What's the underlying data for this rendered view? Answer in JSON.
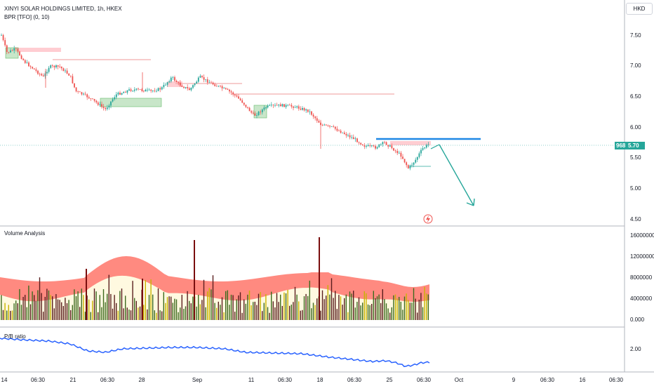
{
  "header": {
    "symbol_title": "XINYI SOLAR HOLDINGS LIMITED, 1h, HKEX",
    "indicator": "BPR [TFO] (0, 10)"
  },
  "currency_button": "HKD",
  "price_axis": {
    "labels": [
      "7.50",
      "7.00",
      "6.50",
      "6.00",
      "5.50",
      "5.00",
      "4.50"
    ]
  },
  "price_badges": {
    "countdown": "968",
    "last_price": "5.70"
  },
  "volume_panel": {
    "title": "Volume Analysis",
    "axis_labels": [
      "16000000",
      "12000000",
      "8000000",
      "4000000",
      "0.000"
    ]
  },
  "pb_panel": {
    "title": "P/B ratio",
    "axis_labels": [
      "2.00"
    ]
  },
  "time_axis": {
    "labels": [
      "14",
      "06:30",
      "21",
      "06:30",
      "28",
      "Sep",
      "11",
      "06:30",
      "18",
      "06:30",
      "25",
      "06:30",
      "Oct",
      "9",
      "06:30",
      "16",
      "06:30"
    ]
  },
  "colors": {
    "up": "#26a69a",
    "down": "#ef5350",
    "accent_blue": "#1e88e5",
    "volume_band": "#ff8a80",
    "pb_line": "#2962ff"
  },
  "icons": [
    "lightning-icon",
    "arrow-projection-icon"
  ]
}
